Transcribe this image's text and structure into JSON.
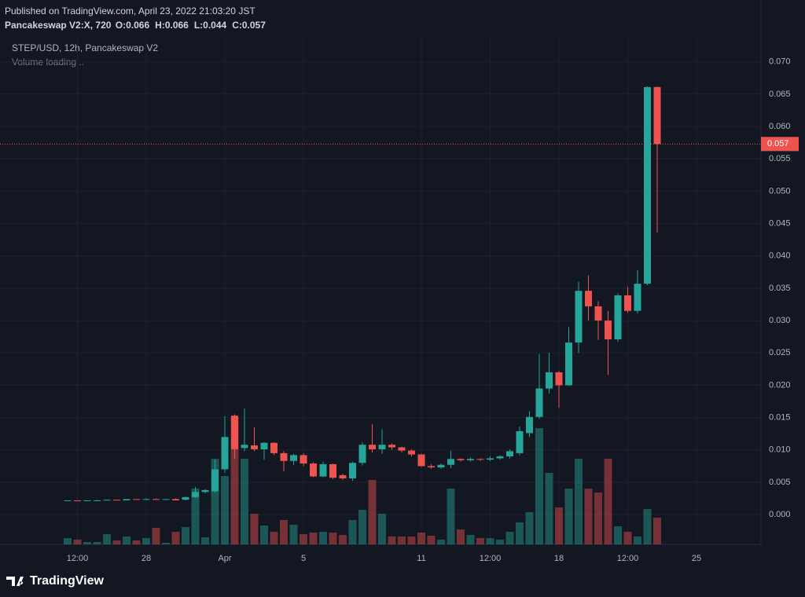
{
  "header": {
    "published": "Published on TradingView.com, April 23, 2022 21:03:20 JST",
    "symbol": "Pancakeswap V2:X, 720",
    "ohlc": [
      {
        "key": "O:",
        "value": "0.066"
      },
      {
        "key": "H:",
        "value": "0.066"
      },
      {
        "key": "L:",
        "value": "0.044"
      },
      {
        "key": "C:",
        "value": "0.057"
      }
    ]
  },
  "footer": {
    "brand": "TradingView"
  },
  "chart_data": {
    "type": "candlestick",
    "title": "STEP/USD, 12h, Pancakeswap V2",
    "subtitle": "Volume loading...",
    "categories": [
      null,
      null,
      null,
      null,
      null,
      null,
      null,
      null,
      null,
      null,
      null,
      null,
      null,
      null,
      null,
      null,
      null,
      null,
      null,
      null,
      null,
      null,
      null,
      null,
      null,
      null,
      null,
      null,
      null,
      null,
      null,
      null,
      null,
      null,
      null,
      null,
      null,
      null,
      null,
      null,
      null,
      null,
      null,
      null,
      null,
      null,
      null,
      null,
      null,
      null,
      null,
      null,
      null,
      null,
      null,
      null,
      null,
      null,
      null,
      null,
      null
    ],
    "open": [
      0.0021,
      0.0022,
      0.0021,
      0.0022,
      0.0022,
      0.0023,
      0.0022,
      0.0024,
      0.0023,
      0.0024,
      0.0023,
      0.0024,
      0.0023,
      0.0027,
      0.0035,
      0.0036,
      0.007,
      0.0153,
      0.0103,
      0.0107,
      0.0101,
      0.0111,
      0.0095,
      0.0083,
      0.0092,
      0.0079,
      0.0059,
      0.0078,
      0.0061,
      0.0056,
      0.008,
      0.0108,
      0.0101,
      0.0108,
      0.0104,
      0.0099,
      0.0093,
      0.0075,
      0.0073,
      0.0077,
      0.0086,
      0.0084,
      0.0086,
      0.0085,
      0.0087,
      0.009,
      0.0095,
      0.0126,
      0.0151,
      0.0195,
      0.022,
      0.02,
      0.0266,
      0.0346,
      0.0322,
      0.03,
      0.0271,
      0.0339,
      0.0315,
      0.0357,
      0.0661
    ],
    "high": [
      0.0022,
      0.0022,
      0.0022,
      0.0023,
      0.0023,
      0.0023,
      0.0024,
      0.0024,
      0.0025,
      0.0025,
      0.0024,
      0.0025,
      0.0028,
      0.0043,
      0.0039,
      0.0085,
      0.0152,
      0.0155,
      0.0164,
      0.0135,
      0.0112,
      0.0112,
      0.0098,
      0.0094,
      0.0095,
      0.0081,
      0.0082,
      0.0079,
      0.0063,
      0.0082,
      0.0112,
      0.014,
      0.0132,
      0.011,
      0.0105,
      0.0101,
      0.0094,
      0.0078,
      0.0079,
      0.0099,
      0.0087,
      0.0088,
      0.0087,
      0.009,
      0.0092,
      0.0101,
      0.0136,
      0.016,
      0.0248,
      0.025,
      0.0222,
      0.029,
      0.036,
      0.037,
      0.033,
      0.0315,
      0.0342,
      0.0352,
      0.0378,
      0.0662,
      0.0662
    ],
    "low": [
      0.0021,
      0.0021,
      0.0021,
      0.0022,
      0.0022,
      0.0022,
      0.0022,
      0.0023,
      0.0023,
      0.0023,
      0.0023,
      0.0022,
      0.0022,
      0.0026,
      0.0033,
      0.0034,
      0.0065,
      0.0086,
      0.0098,
      0.0098,
      0.0085,
      0.0092,
      0.0067,
      0.0077,
      0.0075,
      0.0058,
      0.0058,
      0.0055,
      0.0054,
      0.0052,
      0.0076,
      0.0096,
      0.0094,
      0.01,
      0.0096,
      0.009,
      0.0074,
      0.0071,
      0.0071,
      0.0072,
      0.0082,
      0.0082,
      0.0083,
      0.0083,
      0.0085,
      0.0087,
      0.0092,
      0.012,
      0.0148,
      0.0187,
      0.0165,
      0.0199,
      0.025,
      0.03,
      0.027,
      0.0216,
      0.0267,
      0.0312,
      0.0311,
      0.0355,
      0.0436
    ],
    "close": [
      0.0022,
      0.0021,
      0.0022,
      0.0022,
      0.0023,
      0.0022,
      0.0024,
      0.0023,
      0.0024,
      0.0023,
      0.0024,
      0.0022,
      0.0027,
      0.0035,
      0.0038,
      0.007,
      0.012,
      0.0101,
      0.0108,
      0.0101,
      0.0111,
      0.0095,
      0.0083,
      0.0092,
      0.0079,
      0.0059,
      0.0078,
      0.0057,
      0.0056,
      0.008,
      0.0108,
      0.0101,
      0.0108,
      0.0104,
      0.0099,
      0.0093,
      0.0075,
      0.0073,
      0.0077,
      0.0086,
      0.0084,
      0.0086,
      0.0085,
      0.0087,
      0.009,
      0.0098,
      0.0129,
      0.0151,
      0.0195,
      0.022,
      0.02,
      0.0266,
      0.0346,
      0.0322,
      0.03,
      0.0271,
      0.0339,
      0.0315,
      0.0357,
      0.0661,
      0.0573
    ],
    "volume": [
      8,
      6,
      3,
      3,
      13,
      5,
      10,
      5,
      8,
      21,
      2,
      16,
      22,
      71,
      9,
      109,
      87,
      162,
      109,
      39,
      24,
      16,
      31,
      25,
      13,
      15,
      16,
      15,
      12,
      31,
      44,
      82,
      39,
      10,
      10,
      10,
      15,
      11,
      6,
      71,
      19,
      12,
      8,
      8,
      6,
      16,
      28,
      41,
      148,
      91,
      47,
      71,
      109,
      71,
      66,
      109,
      23,
      16,
      10,
      45,
      34
    ],
    "price_tag": "0.057",
    "up_color": "#26a69a",
    "down_color": "#ef5350",
    "xlim": [
      -6.88,
      70.56
    ],
    "xticks": [
      {
        "value": 1,
        "label": "12:00"
      },
      {
        "value": 8,
        "label": "28"
      },
      {
        "value": 16,
        "label": "Apr"
      },
      {
        "value": 24,
        "label": "5"
      },
      {
        "value": 36,
        "label": "11"
      },
      {
        "value": 43,
        "label": "12:00"
      },
      {
        "value": 50,
        "label": "18"
      },
      {
        "value": 57,
        "label": "12:00"
      },
      {
        "value": 64,
        "label": "25"
      }
    ],
    "ylim": [
      -0.0046,
      0.0741
    ],
    "yticks": [
      {
        "value": 0,
        "label": "0.000"
      },
      {
        "value": 0.005,
        "label": "0.005"
      },
      {
        "value": 0.01,
        "label": "0.010"
      },
      {
        "value": 0.015,
        "label": "0.015"
      },
      {
        "value": 0.02,
        "label": "0.020"
      },
      {
        "value": 0.025,
        "label": "0.025"
      },
      {
        "value": 0.03,
        "label": "0.030"
      },
      {
        "value": 0.035,
        "label": "0.035"
      },
      {
        "value": 0.04,
        "label": "0.040"
      },
      {
        "value": 0.045,
        "label": "0.045"
      },
      {
        "value": 0.05,
        "label": "0.050"
      },
      {
        "value": 0.055,
        "label": "0.055"
      },
      {
        "value": 0.06,
        "label": "0.060"
      },
      {
        "value": 0.065,
        "label": "0.065"
      },
      {
        "value": 0.07,
        "label": "0.070"
      }
    ],
    "grid": true
  }
}
